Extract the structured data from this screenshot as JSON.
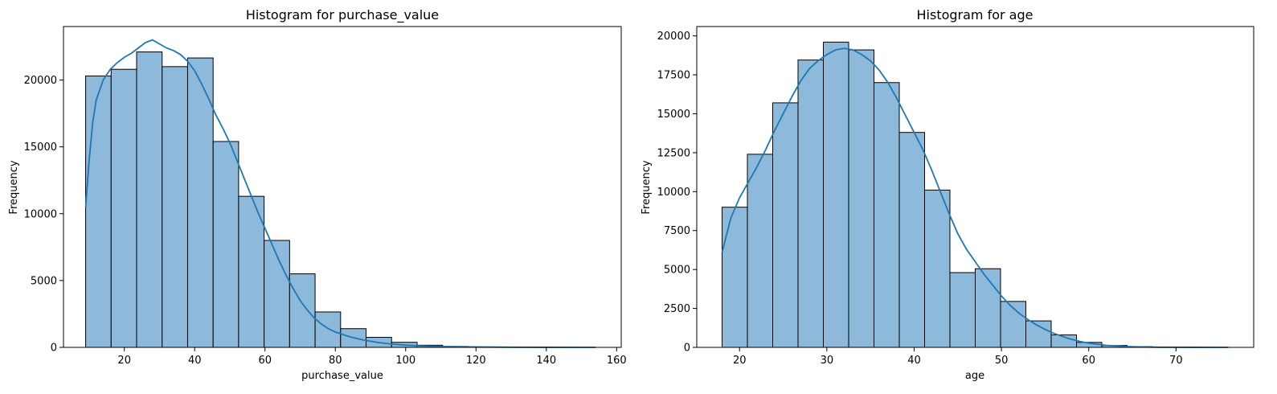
{
  "chart_data": [
    {
      "type": "bar",
      "title": "Histogram for purchase_value",
      "xlabel": "purchase_value",
      "ylabel": "Frequency",
      "xlim": [
        2.7,
        161.3
      ],
      "ylim": [
        0,
        24000
      ],
      "xticks": [
        20,
        40,
        60,
        80,
        100,
        120,
        140,
        160
      ],
      "yticks": [
        0,
        5000,
        10000,
        15000,
        20000
      ],
      "grid": false,
      "bar_color": "#8db9da",
      "edge_color": "#000000",
      "kde_color": "#1f77b4",
      "bins": [
        {
          "x0": 9.0,
          "x1": 16.25,
          "count": 20300
        },
        {
          "x0": 16.25,
          "x1": 23.5,
          "count": 20800
        },
        {
          "x0": 23.5,
          "x1": 30.75,
          "count": 22100
        },
        {
          "x0": 30.75,
          "x1": 38.0,
          "count": 21000
        },
        {
          "x0": 38.0,
          "x1": 45.25,
          "count": 21650
        },
        {
          "x0": 45.25,
          "x1": 52.5,
          "count": 15400
        },
        {
          "x0": 52.5,
          "x1": 59.75,
          "count": 11300
        },
        {
          "x0": 59.75,
          "x1": 67.0,
          "count": 8000
        },
        {
          "x0": 67.0,
          "x1": 74.25,
          "count": 5500
        },
        {
          "x0": 74.25,
          "x1": 81.5,
          "count": 2650
        },
        {
          "x0": 81.5,
          "x1": 88.75,
          "count": 1400
        },
        {
          "x0": 88.75,
          "x1": 96.0,
          "count": 750
        },
        {
          "x0": 96.0,
          "x1": 103.25,
          "count": 380
        },
        {
          "x0": 103.25,
          "x1": 110.5,
          "count": 160
        },
        {
          "x0": 110.5,
          "x1": 117.75,
          "count": 70
        },
        {
          "x0": 117.75,
          "x1": 125.0,
          "count": 35
        },
        {
          "x0": 125.0,
          "x1": 132.25,
          "count": 15
        },
        {
          "x0": 132.25,
          "x1": 139.5,
          "count": 8
        },
        {
          "x0": 139.5,
          "x1": 146.75,
          "count": 4
        },
        {
          "x0": 146.75,
          "x1": 154.0,
          "count": 2
        }
      ],
      "kde": [
        [
          9,
          10500
        ],
        [
          10,
          14000
        ],
        [
          11,
          16800
        ],
        [
          12,
          18500
        ],
        [
          14,
          20000
        ],
        [
          16,
          20800
        ],
        [
          18,
          21300
        ],
        [
          20,
          21700
        ],
        [
          22,
          22000
        ],
        [
          24,
          22400
        ],
        [
          26,
          22800
        ],
        [
          28,
          23000
        ],
        [
          30,
          22700
        ],
        [
          32,
          22400
        ],
        [
          34,
          22200
        ],
        [
          36,
          21900
        ],
        [
          38,
          21400
        ],
        [
          40,
          20700
        ],
        [
          42,
          19700
        ],
        [
          44,
          18600
        ],
        [
          46,
          17400
        ],
        [
          48,
          16400
        ],
        [
          50,
          15300
        ],
        [
          52,
          14000
        ],
        [
          54,
          12700
        ],
        [
          56,
          11400
        ],
        [
          58,
          10100
        ],
        [
          60,
          8900
        ],
        [
          62,
          7700
        ],
        [
          64,
          6500
        ],
        [
          66,
          5400
        ],
        [
          68,
          4400
        ],
        [
          70,
          3500
        ],
        [
          72,
          2800
        ],
        [
          74,
          2200
        ],
        [
          76,
          1750
        ],
        [
          78,
          1400
        ],
        [
          80,
          1150
        ],
        [
          84,
          800
        ],
        [
          88,
          550
        ],
        [
          92,
          370
        ],
        [
          96,
          250
        ],
        [
          100,
          170
        ],
        [
          104,
          110
        ],
        [
          110,
          60
        ],
        [
          120,
          25
        ],
        [
          130,
          10
        ],
        [
          140,
          4
        ],
        [
          154,
          1
        ]
      ]
    },
    {
      "type": "bar",
      "title": "Histogram for age",
      "xlabel": "age",
      "ylabel": "Frequency",
      "xlim": [
        15.1,
        78.9
      ],
      "ylim": [
        0,
        20600
      ],
      "xticks": [
        20,
        30,
        40,
        50,
        60,
        70
      ],
      "yticks": [
        0,
        2500,
        5000,
        7500,
        10000,
        12500,
        15000,
        17500,
        20000
      ],
      "grid": false,
      "bar_color": "#8db9da",
      "edge_color": "#000000",
      "kde_color": "#1f77b4",
      "bins": [
        {
          "x0": 18.0,
          "x1": 20.9,
          "count": 9000
        },
        {
          "x0": 20.9,
          "x1": 23.8,
          "count": 12400
        },
        {
          "x0": 23.8,
          "x1": 26.7,
          "count": 15700
        },
        {
          "x0": 26.7,
          "x1": 29.6,
          "count": 18450
        },
        {
          "x0": 29.6,
          "x1": 32.5,
          "count": 19600
        },
        {
          "x0": 32.5,
          "x1": 35.4,
          "count": 19100
        },
        {
          "x0": 35.4,
          "x1": 38.3,
          "count": 17000
        },
        {
          "x0": 38.3,
          "x1": 41.2,
          "count": 13800
        },
        {
          "x0": 41.2,
          "x1": 44.1,
          "count": 10100
        },
        {
          "x0": 44.1,
          "x1": 47.0,
          "count": 4800
        },
        {
          "x0": 47.0,
          "x1": 49.9,
          "count": 5050
        },
        {
          "x0": 49.9,
          "x1": 52.8,
          "count": 2950
        },
        {
          "x0": 52.8,
          "x1": 55.7,
          "count": 1700
        },
        {
          "x0": 55.7,
          "x1": 58.6,
          "count": 800
        },
        {
          "x0": 58.6,
          "x1": 61.5,
          "count": 320
        },
        {
          "x0": 61.5,
          "x1": 64.4,
          "count": 120
        },
        {
          "x0": 64.4,
          "x1": 67.3,
          "count": 45
        },
        {
          "x0": 67.3,
          "x1": 70.2,
          "count": 15
        },
        {
          "x0": 70.2,
          "x1": 73.1,
          "count": 6
        },
        {
          "x0": 73.1,
          "x1": 76.0,
          "count": 2
        }
      ],
      "kde": [
        [
          18,
          6100
        ],
        [
          19,
          8300
        ],
        [
          20,
          9600
        ],
        [
          21,
          10600
        ],
        [
          22,
          11600
        ],
        [
          23,
          12700
        ],
        [
          24,
          13900
        ],
        [
          25,
          15000
        ],
        [
          26,
          16100
        ],
        [
          27,
          17100
        ],
        [
          28,
          17900
        ],
        [
          29,
          18400
        ],
        [
          30,
          18800
        ],
        [
          31,
          19100
        ],
        [
          32,
          19200
        ],
        [
          33,
          19100
        ],
        [
          34,
          18800
        ],
        [
          35,
          18400
        ],
        [
          36,
          17800
        ],
        [
          37,
          17000
        ],
        [
          38,
          16000
        ],
        [
          39,
          14900
        ],
        [
          40,
          13800
        ],
        [
          41,
          12700
        ],
        [
          42,
          11400
        ],
        [
          43,
          10000
        ],
        [
          44,
          8600
        ],
        [
          45,
          7300
        ],
        [
          46,
          6300
        ],
        [
          47,
          5500
        ],
        [
          48,
          4700
        ],
        [
          49,
          4000
        ],
        [
          50,
          3300
        ],
        [
          51,
          2700
        ],
        [
          52,
          2200
        ],
        [
          53,
          1800
        ],
        [
          54,
          1450
        ],
        [
          55,
          1150
        ],
        [
          56,
          900
        ],
        [
          57,
          700
        ],
        [
          58,
          520
        ],
        [
          59,
          380
        ],
        [
          60,
          270
        ],
        [
          62,
          130
        ],
        [
          64,
          60
        ],
        [
          66,
          25
        ],
        [
          68,
          10
        ],
        [
          72,
          3
        ],
        [
          76,
          1
        ]
      ]
    }
  ]
}
